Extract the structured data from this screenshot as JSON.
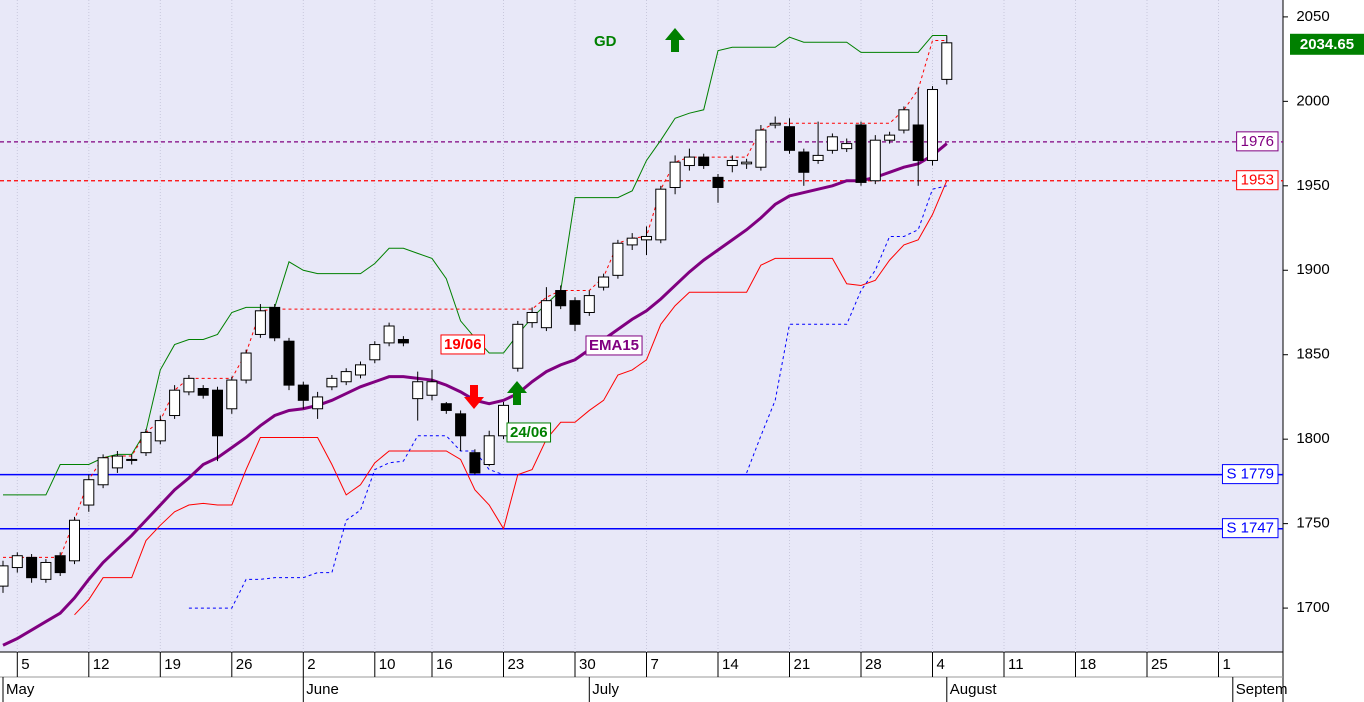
{
  "chart_data": {
    "type": "candlestick",
    "categories": [
      null,
      "5",
      null,
      null,
      null,
      null,
      "12",
      null,
      null,
      null,
      null,
      "19",
      null,
      null,
      null,
      null,
      "26",
      null,
      null,
      null,
      null,
      "2",
      null,
      null,
      null,
      null,
      "10",
      null,
      null,
      null,
      "16",
      null,
      null,
      null,
      null,
      "23",
      null,
      null,
      null,
      null,
      "30",
      null,
      null,
      null,
      null,
      "7",
      null,
      null,
      null,
      null,
      "14",
      null,
      null,
      null,
      null,
      "21",
      null,
      null,
      null,
      null,
      "28",
      null,
      null,
      null,
      null,
      "4",
      null,
      null,
      null,
      null,
      "11",
      null,
      null,
      null,
      null,
      "18",
      null,
      null,
      null,
      null,
      "25",
      null,
      null,
      null,
      null,
      "1",
      null,
      null,
      null,
      null
    ],
    "months": [
      "May",
      null,
      null,
      null,
      null,
      null,
      null,
      null,
      null,
      null,
      null,
      null,
      null,
      null,
      null,
      null,
      null,
      null,
      null,
      null,
      null,
      "June",
      null,
      null,
      null,
      null,
      null,
      null,
      null,
      null,
      null,
      null,
      null,
      null,
      null,
      null,
      null,
      null,
      null,
      null,
      null,
      "July",
      null,
      null,
      null,
      null,
      null,
      null,
      null,
      null,
      null,
      null,
      null,
      null,
      null,
      null,
      null,
      null,
      null,
      null,
      null,
      null,
      null,
      null,
      null,
      null,
      "August",
      null,
      null,
      null,
      null,
      null,
      null,
      null,
      null,
      null,
      null,
      null,
      null,
      null,
      null,
      null,
      null,
      null,
      null,
      null,
      "Septem",
      null,
      null,
      null,
      null
    ],
    "candles": {
      "open": [
        1713,
        1724,
        1730,
        1717,
        1731,
        1728,
        1761,
        1773,
        1783,
        1788,
        1792,
        1799,
        1814,
        1828,
        1830,
        1829,
        1818,
        1835,
        1862,
        1878,
        1858,
        1832,
        1818,
        1831,
        1834,
        1838,
        1847,
        1857,
        1859,
        1824,
        1826,
        1821,
        1815,
        1792,
        1785,
        1802,
        1842,
        1869,
        1866,
        1888,
        1882,
        1875,
        1890,
        1897,
        1915,
        1918,
        1918,
        1949,
        1962,
        1967,
        1955,
        1962,
        1963,
        1961,
        1986,
        1985,
        1970,
        1965,
        1971,
        1972,
        1986,
        1953,
        1977,
        1983,
        1986,
        1965,
        2013,
        null,
        null,
        null,
        null,
        null,
        null,
        null,
        null,
        null,
        null,
        null,
        null,
        null,
        null,
        null,
        null,
        null,
        null,
        null,
        null,
        null,
        null,
        null
      ],
      "high": [
        1728,
        1733,
        1732,
        1729,
        1733,
        1754,
        1779,
        1791,
        1793,
        1791,
        1806,
        1814,
        1832,
        1838,
        1832,
        1831,
        1837,
        1853,
        1880,
        1880,
        1860,
        1834,
        1828,
        1838,
        1842,
        1846,
        1858,
        1869,
        1861,
        1840,
        1841,
        1822,
        1817,
        1794,
        1805,
        1822,
        1870,
        1878,
        1890,
        1891,
        1884,
        1888,
        1898,
        1918,
        1922,
        1926,
        1950,
        1968,
        1972,
        1969,
        1957,
        1968,
        1966,
        1986,
        1991,
        1990,
        1972,
        1988,
        1981,
        1978,
        1988,
        1980,
        1982,
        1997,
        2008,
        2009,
        2039,
        null,
        null,
        null,
        null,
        null,
        null,
        null,
        null,
        null,
        null,
        null,
        null,
        null,
        null,
        null,
        null,
        null,
        null,
        null,
        null,
        null,
        null,
        null
      ],
      "low": [
        1709,
        1721,
        1715,
        1715,
        1719,
        1726,
        1757,
        1771,
        1780,
        1785,
        1790,
        1797,
        1812,
        1826,
        1824,
        1787,
        1815,
        1833,
        1860,
        1858,
        1829,
        1818,
        1812,
        1829,
        1832,
        1836,
        1845,
        1855,
        1855,
        1811,
        1823,
        1815,
        1793,
        1779,
        1784,
        1800,
        1840,
        1866,
        1864,
        1877,
        1864,
        1873,
        1888,
        1895,
        1912,
        1909,
        1916,
        1945,
        1959,
        1960,
        1940,
        1958,
        1960,
        1959,
        1984,
        1969,
        1950,
        1963,
        1969,
        1970,
        1950,
        1951,
        1975,
        1981,
        1950,
        1962,
        2010,
        null,
        null,
        null,
        null,
        null,
        null,
        null,
        null,
        null,
        null,
        null,
        null,
        null,
        null,
        null,
        null,
        null,
        null,
        null,
        null,
        null,
        null,
        null
      ],
      "close": [
        1725,
        1731,
        1718,
        1727,
        1721,
        1752,
        1776,
        1789,
        1790,
        1788,
        1804,
        1811,
        1829,
        1836,
        1826,
        1802,
        1835,
        1851,
        1876,
        1860,
        1832,
        1823,
        1825,
        1836,
        1840,
        1844,
        1856,
        1867,
        1857,
        1834,
        1834,
        1817,
        1802,
        1780,
        1802,
        1820,
        1868,
        1875,
        1882,
        1879,
        1868,
        1885,
        1896,
        1916,
        1919,
        1920,
        1948,
        1964,
        1967,
        1962,
        1949,
        1965,
        1964,
        1983,
        1987,
        1971,
        1958,
        1968,
        1979,
        1975,
        1952,
        1977,
        1980,
        1995,
        1965,
        2007,
        2034.65,
        null,
        null,
        null,
        null,
        null,
        null,
        null,
        null,
        null,
        null,
        null,
        null,
        null,
        null,
        null,
        null,
        null,
        null,
        null,
        null,
        null,
        null,
        null
      ]
    },
    "series": [
      {
        "name": "EMA15",
        "color": "#800080",
        "width": 3,
        "dashed": false,
        "values": [
          1678,
          1682,
          1687,
          1692,
          1697,
          1706,
          1717,
          1727,
          1735,
          1743,
          1752,
          1761,
          1770,
          1777,
          1785,
          1789,
          1795,
          1801,
          1808,
          1814,
          1817,
          1818,
          1820,
          1823,
          1827,
          1831,
          1834,
          1837,
          1837,
          1836,
          1835,
          1832,
          1828,
          1823,
          1821,
          1823,
          1827,
          1834,
          1840,
          1844,
          1847,
          1853,
          1859,
          1865,
          1871,
          1876,
          1883,
          1891,
          1899,
          1906,
          1912,
          1918,
          1924,
          1931,
          1939,
          1944,
          1946,
          1948,
          1950,
          1953,
          1953,
          1955,
          1958,
          1961,
          1963,
          1968,
          1975,
          null,
          null,
          null,
          null,
          null,
          null,
          null,
          null,
          null,
          null,
          null,
          null,
          null,
          null,
          null,
          null,
          null,
          null,
          null,
          null,
          null,
          null,
          null
        ]
      },
      {
        "color": "#008000",
        "width": 1,
        "dashed": false,
        "values": [
          1767,
          1767,
          1767,
          1767,
          1785,
          1785,
          1785,
          1789,
          1791,
          1791,
          1805,
          1841,
          1856,
          1859,
          1859,
          1862,
          1875,
          1878,
          1878,
          1878,
          1905,
          1900,
          1898,
          1898,
          1898,
          1898,
          1904,
          1913,
          1913,
          1910,
          1907,
          1895,
          1870,
          1860,
          1851,
          1851,
          1862,
          1872,
          1880,
          1888,
          1943,
          1943,
          1943,
          1943,
          1947,
          1965,
          1977,
          1990,
          1993,
          1995,
          2030,
          2032,
          2032,
          2032,
          2032,
          2038,
          2035,
          2035,
          2035,
          2035,
          2029,
          2029,
          2029,
          2029,
          2029,
          2039,
          2039,
          null,
          null,
          null,
          null,
          null,
          null,
          null,
          null,
          null,
          null,
          null,
          null,
          null,
          null,
          null,
          null,
          null,
          null,
          null,
          null,
          null,
          null,
          null
        ]
      },
      {
        "color": "#ff0000",
        "width": 1,
        "dashed": false,
        "values": [
          null,
          null,
          null,
          null,
          null,
          1696,
          1705,
          1718,
          1718,
          1718,
          1740,
          1749,
          1757,
          1761,
          1762,
          1761,
          1761,
          1782,
          1801,
          1801,
          1801,
          1801,
          1801,
          1785,
          1767,
          1773,
          1786,
          1793,
          1793,
          1793,
          1793,
          1793,
          1788,
          1770,
          1761,
          1747,
          1779,
          1782,
          1800,
          1810,
          1810,
          1817,
          1823,
          1838,
          1841,
          1847,
          1868,
          1879,
          1887,
          1887,
          1887,
          1887,
          1887,
          1903,
          1907,
          1907,
          1907,
          1907,
          1907,
          1892,
          1891,
          1894,
          1906,
          1915,
          1918,
          1933,
          1953,
          null,
          null,
          null,
          null,
          null,
          null,
          null,
          null,
          null,
          null,
          null,
          null,
          null,
          null,
          null,
          null,
          null,
          null,
          null,
          null,
          null,
          null,
          null
        ]
      },
      {
        "color": "#0000ff",
        "width": 1,
        "dashed": true,
        "values": [
          null,
          null,
          null,
          null,
          null,
          null,
          null,
          null,
          null,
          null,
          null,
          null,
          null,
          1700,
          1700,
          1700,
          1700,
          1717,
          1717,
          1718,
          1718,
          1718,
          1721,
          1721,
          1752,
          1758,
          1782,
          1786,
          1787,
          1802,
          1802,
          1802,
          1793,
          1793,
          1782,
          1779,
          null,
          null,
          null,
          null,
          null,
          null,
          null,
          null,
          null,
          null,
          null,
          null,
          null,
          null,
          null,
          null,
          1780,
          1802,
          1823,
          1868,
          1868,
          1868,
          1868,
          1868,
          1888,
          1900,
          1920,
          1920,
          1924,
          1948,
          1950,
          null,
          null,
          null,
          null,
          null,
          null,
          null,
          null,
          null,
          null,
          null,
          null,
          null,
          null,
          null,
          null,
          null,
          null,
          null,
          null,
          null,
          null,
          null
        ]
      },
      {
        "color": "#ff0000",
        "width": 1,
        "dashed": true,
        "values": [
          1730,
          1730,
          1730,
          1730,
          1730,
          1752,
          1776,
          1789,
          1790,
          1790,
          1804,
          1811,
          1829,
          1836,
          1836,
          1836,
          1836,
          1851,
          1876,
          1877,
          1877,
          1877,
          1877,
          1877,
          1877,
          1877,
          1877,
          1877,
          1877,
          1877,
          1877,
          1877,
          1877,
          1877,
          1877,
          1877,
          1877,
          1877,
          1884,
          1888,
          1888,
          1888,
          1896,
          1916,
          1919,
          1920,
          1948,
          1964,
          1967,
          1967,
          1967,
          1967,
          1967,
          1983,
          1987,
          1987,
          1987,
          1987,
          1987,
          1987,
          1987,
          1987,
          1987,
          1995,
          2007,
          2036,
          2036,
          null,
          null,
          null,
          null,
          null,
          null,
          null,
          null,
          null,
          null,
          null,
          null,
          null,
          null,
          null,
          null,
          null,
          null,
          null,
          null,
          null,
          null,
          null
        ]
      }
    ],
    "levels": [
      {
        "value": 1976,
        "color": "#800080",
        "dashed": true
      },
      {
        "value": 1953,
        "color": "#ff0000",
        "dashed": true
      },
      {
        "value": 1779,
        "label": "S 1779",
        "color": "#0000ff",
        "dashed": false
      },
      {
        "value": 1747,
        "label": "S 1747",
        "color": "#0000ff",
        "dashed": false
      }
    ],
    "annotations": [
      {
        "text": "GD",
        "color": "#008000",
        "arrow": "up"
      },
      {
        "text": "19/06",
        "color": "#ff0000",
        "arrow": "down"
      },
      {
        "text": "24/06",
        "color": "#008000",
        "arrow": "up"
      }
    ],
    "ylim": [
      1674,
      2060
    ],
    "yticks": [
      1700,
      1750,
      1800,
      1850,
      1900,
      1950,
      2000,
      2050
    ],
    "up_color": "#ffffff",
    "down_color": "#000000",
    "background": "#e8e8f8",
    "grid": true
  }
}
